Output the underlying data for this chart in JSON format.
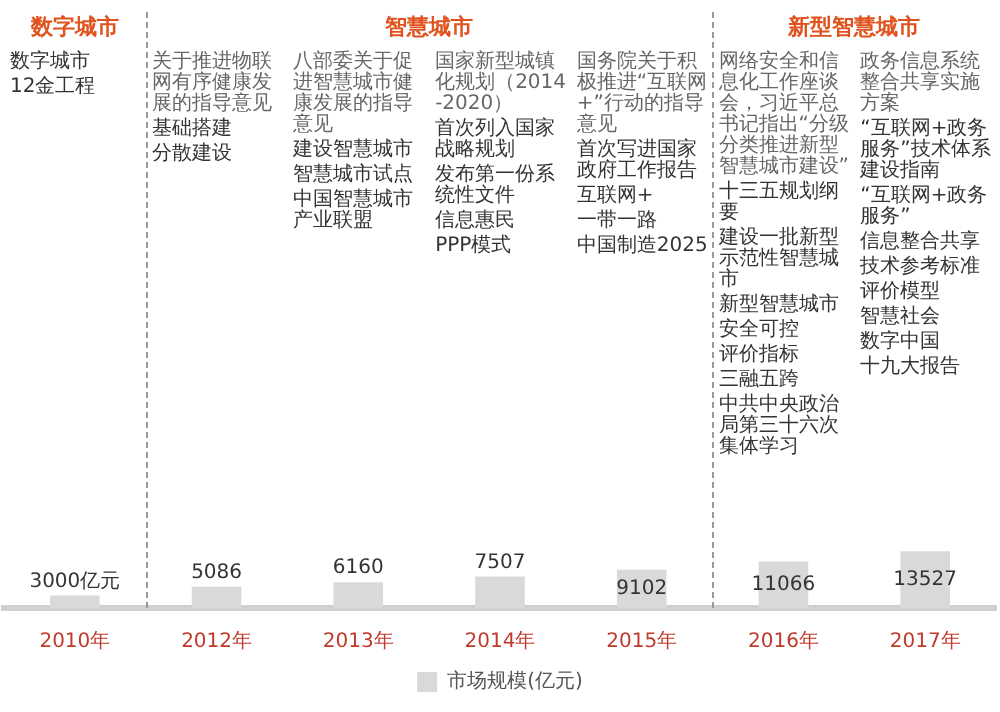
{
  "chart_data": {
    "type": "bar",
    "categories": [
      "2010年",
      "2012年",
      "2013年",
      "2014年",
      "2015年",
      "2016年",
      "2017年"
    ],
    "series": [
      {
        "name": "市场规模(亿元)",
        "color": "#d9d9d9",
        "values": [
          3000,
          5086,
          6160,
          7507,
          9102,
          11066,
          13527
        ],
        "value_labels": [
          "3000亿元",
          "5086",
          "6160",
          "7507",
          "9102",
          "11066",
          "13527"
        ]
      }
    ],
    "annotations": [
      "数字城市",
      "智慧城市",
      "新型智慧城市",
      "数字城市",
      "12金工程",
      "关于推进物联网有序健康发展的指导意见",
      "基础搭建",
      "分散建设",
      "八部委关于促进智慧城市健康发展的指导意见",
      "建设智慧城市",
      "智慧城市试点",
      "中国智慧城市产业联盟",
      "国家新型城镇化规划（2014-2020）",
      "首次列入国家战略规划",
      "发布第一份系统性文件",
      "信息惠民",
      "PPP模式",
      "国务院关于积极推进“互联网+”行动的指导意见",
      "首次写进国家政府工作报告",
      "互联网+",
      "一带一路",
      "中国制造2025",
      "网络安全和信息化工作座谈会，习近平总书记指出“分级分类推进新型智慧城市建设”",
      "十三五规划纲要",
      "建设一批新型示范性智慧城市",
      "新型智慧城市",
      "安全可控",
      "评价指标",
      "三融五跨",
      "中共中央政治局第三十六次集体学习",
      "政务信息系统整合共享实施方案",
      "“互联网+政务服务”技术体系建设指南",
      "“互联网+政务服务”",
      "信息整合共享",
      "技术参考标准",
      "评价模型",
      "智慧社会",
      "数字中国",
      "十九大报告"
    ],
    "legend": "bottom",
    "grid": false,
    "tick_labels": "x"
  }
}
